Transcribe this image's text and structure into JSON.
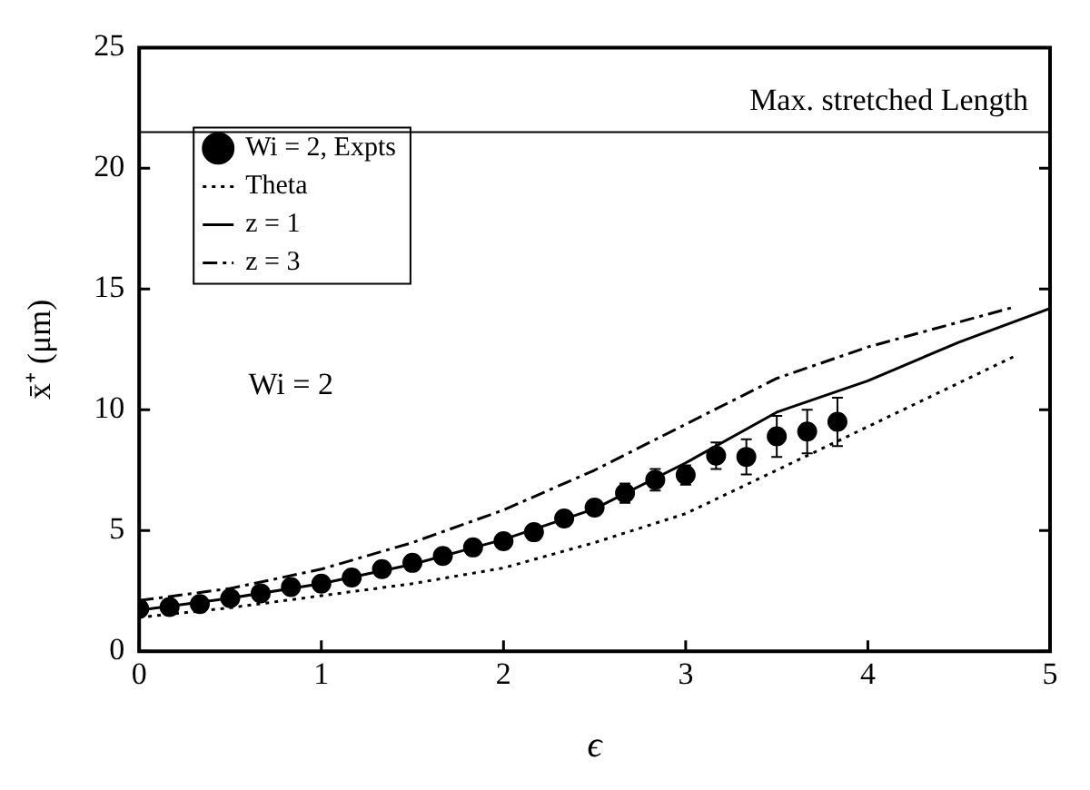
{
  "chart_data": {
    "type": "line",
    "xlabel": "ϵ",
    "ylabel": "x̄⁺ (μm)",
    "xlim": [
      0,
      5
    ],
    "ylim": [
      0,
      25
    ],
    "xticks": [
      0,
      1,
      2,
      3,
      4,
      5
    ],
    "yticks": [
      0,
      5,
      10,
      15,
      20,
      25
    ],
    "grid": false,
    "legend": "top left",
    "annotations": [
      "Wi = 2"
    ],
    "ref_lines": [
      {
        "axis": "y",
        "value": 21.5,
        "label": "Max. stretched Length",
        "color": "#000000",
        "line_style": "solid"
      }
    ],
    "series": [
      {
        "name": "Wi = 2, Expts",
        "type": "scatter",
        "marker": "circle",
        "color": "#000000",
        "x": [
          0,
          0.167,
          0.333,
          0.5,
          0.667,
          0.833,
          1,
          1.167,
          1.333,
          1.5,
          1.667,
          1.833,
          2,
          2.167,
          2.333,
          2.5,
          2.667,
          2.833,
          3,
          3.167,
          3.333,
          3.5,
          3.667,
          3.833
        ],
        "values": [
          1.76,
          1.83,
          1.95,
          2.2,
          2.4,
          2.66,
          2.8,
          3.05,
          3.4,
          3.66,
          3.95,
          4.3,
          4.56,
          4.93,
          5.5,
          5.95,
          6.55,
          7.1,
          7.3,
          8.1,
          8.05,
          8.9,
          9.1,
          9.5
        ],
        "errors": [
          null,
          null,
          null,
          null,
          null,
          null,
          null,
          null,
          null,
          null,
          null,
          null,
          null,
          null,
          null,
          null,
          0.4,
          0.45,
          0.4,
          0.55,
          0.73,
          0.85,
          0.9,
          1.0
        ]
      },
      {
        "name": "Theta",
        "type": "line",
        "marker": "none",
        "line_style": "dotted",
        "color": "#000000",
        "x": [
          0,
          0.5,
          1,
          1.5,
          2,
          2.5,
          3,
          3.5,
          4,
          4.8
        ],
        "values": [
          1.4,
          1.8,
          2.3,
          2.8,
          3.45,
          4.5,
          5.7,
          7.5,
          9.3,
          12.2
        ]
      },
      {
        "name": "z = 1",
        "type": "line",
        "marker": "none",
        "line_style": "solid",
        "color": "#000000",
        "x": [
          0,
          0.5,
          1,
          1.5,
          2,
          2.5,
          3,
          3.5,
          4,
          4.5,
          5
        ],
        "values": [
          1.7,
          2.2,
          2.8,
          3.6,
          4.63,
          5.9,
          7.8,
          9.9,
          11.2,
          12.8,
          14.2
        ]
      },
      {
        "name": "z = 3",
        "type": "line",
        "marker": "none",
        "line_style": "dashed",
        "color": "#000000",
        "x": [
          0,
          0.5,
          1,
          1.5,
          2,
          2.5,
          3,
          3.5,
          4,
          4.8
        ],
        "values": [
          2.1,
          2.6,
          3.4,
          4.5,
          5.85,
          7.5,
          9.4,
          11.3,
          12.6,
          14.25
        ]
      }
    ]
  }
}
